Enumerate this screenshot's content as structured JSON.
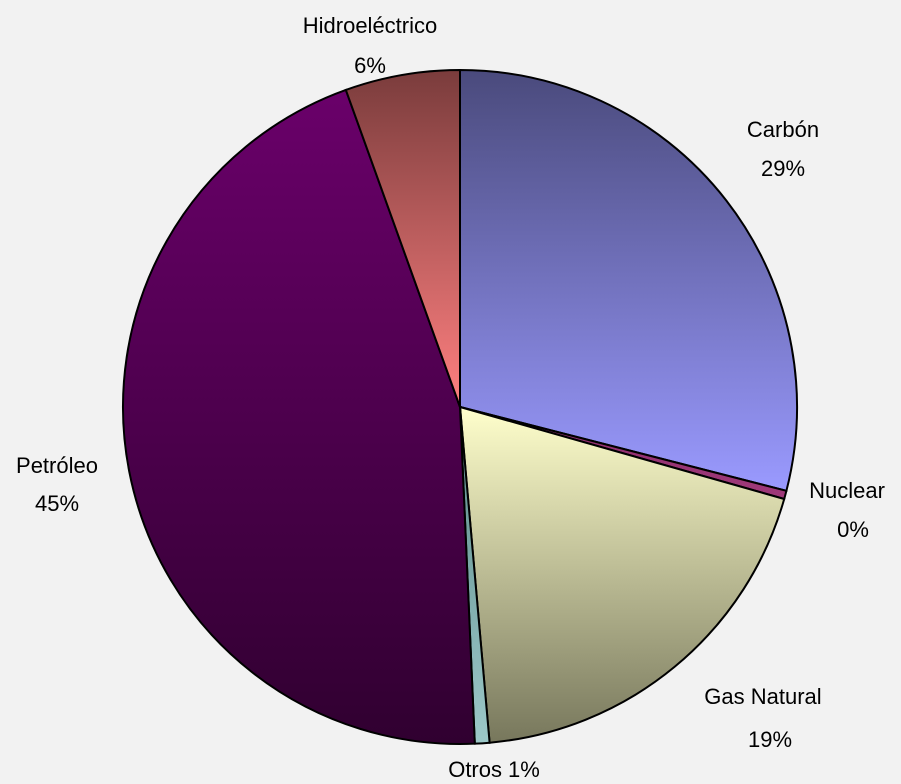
{
  "chart_data": {
    "type": "pie",
    "categories": [
      "Carbón",
      "Nuclear",
      "Gas Natural",
      "Otros",
      "Petróleo",
      "Hidroeléctrico"
    ],
    "values": [
      29.0,
      0.4,
      19.2,
      0.7,
      45.2,
      5.5
    ],
    "value_labels": [
      "29%",
      "0%",
      "19%",
      "1%",
      "45%",
      "6%"
    ],
    "colors": [
      [
        "#4a4a7c",
        "#9a9aff"
      ],
      [
        "#8a2a6a",
        "#a03a7a"
      ],
      [
        "#ffffcc",
        "#77775c"
      ],
      [
        "#5c8a8a",
        "#9cc8c8"
      ],
      [
        "#6a006a",
        "#300030"
      ],
      [
        "#7a3c3c",
        "#ff8080"
      ]
    ]
  }
}
